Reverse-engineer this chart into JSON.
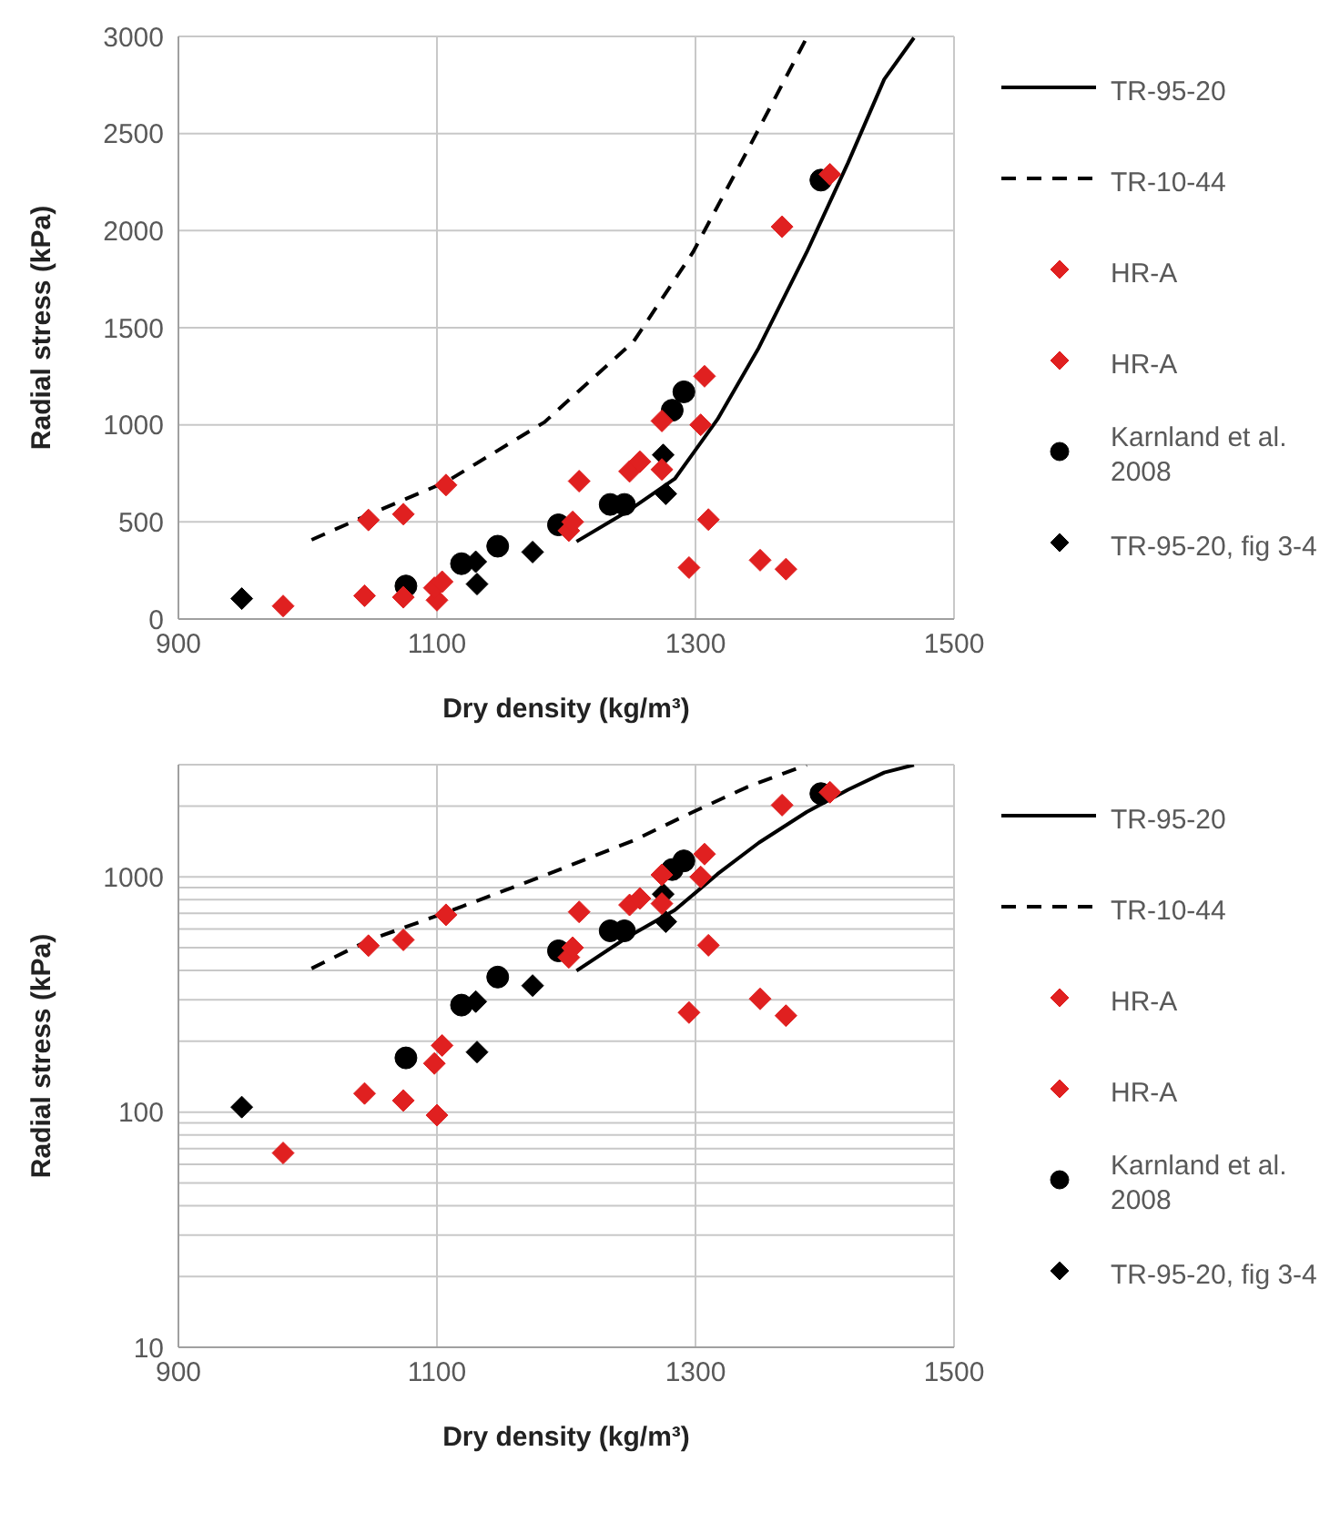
{
  "chart_data": [
    {
      "type": "scatter",
      "xlabel": "Dry density (kg/m³)",
      "ylabel": "Radial stress (kPa)",
      "xlim": [
        900,
        1500
      ],
      "xticks": [
        900,
        1100,
        1300,
        1500
      ],
      "ylim": [
        0,
        3000
      ],
      "yticks": [
        0,
        500,
        1000,
        1500,
        2000,
        2500,
        3000
      ],
      "grid": true,
      "legend": "right",
      "series": [
        {
          "name": "TR-95-20",
          "type": "line",
          "line_style": "solid",
          "marker": "none",
          "color": "#000000",
          "x": [
            1208,
            1247,
            1284,
            1317,
            1349,
            1386,
            1418,
            1446,
            1469
          ],
          "values": [
            399,
            553,
            722,
            1028,
            1397,
            1888,
            2349,
            2779,
            2993
          ]
        },
        {
          "name": "TR-10-44",
          "type": "line",
          "line_style": "dashed",
          "marker": "none",
          "color": "#000000",
          "x": [
            1003,
            1047,
            1107,
            1183,
            1252,
            1298,
            1340,
            1386
          ],
          "values": [
            408,
            537,
            706,
            1013,
            1428,
            1888,
            2410,
            2993
          ]
        },
        {
          "name": "HR-A",
          "marker": "diamond",
          "color": "#e02020",
          "x": [
            1047,
            1074,
            1107,
            1210,
            1205,
            1249,
            1257,
            1274,
            1274,
            1307,
            1367,
            1404
          ],
          "values": [
            510,
            540,
            690,
            710,
            500,
            760,
            810,
            1020,
            770,
            1250,
            2020,
            2290
          ]
        },
        {
          "name": "HR-A",
          "marker": "diamond",
          "color": "#e02020",
          "x": [
            981,
            1044,
            1074,
            1100,
            1098,
            1104,
            1202,
            1304,
            1310,
            1295,
            1350,
            1370
          ],
          "values": [
            67,
            120,
            112,
            97,
            161,
            192,
            455,
            1000,
            512,
            265,
            303,
            257
          ]
        },
        {
          "name": "Karnland et al. 2008",
          "marker": "circle",
          "color": "#000000",
          "x": [
            1076,
            1119,
            1147,
            1194,
            1234,
            1245,
            1282,
            1291,
            1397
          ],
          "values": [
            170,
            285,
            375,
            485,
            590,
            590,
            1075,
            1170,
            2260
          ]
        },
        {
          "name": "TR-95-20, fig 3-4",
          "marker": "diamond",
          "color": "#000000",
          "x": [
            949,
            1130,
            1131,
            1174,
            1275,
            1277
          ],
          "values": [
            105,
            295,
            180,
            345,
            845,
            645
          ]
        }
      ]
    },
    {
      "type": "scatter",
      "xlabel": "Dry density (kg/m³)",
      "ylabel": "Radial stress (kPa)",
      "xlim": [
        900,
        1500
      ],
      "xticks": [
        900,
        1100,
        1300,
        1500
      ],
      "ylim": [
        10,
        3000
      ],
      "log": true,
      "yticks": [
        10,
        {
          "value": 20,
          "label": null
        },
        {
          "value": 30,
          "label": null
        },
        {
          "value": 40,
          "label": null
        },
        {
          "value": 50,
          "label": null
        },
        {
          "value": 60,
          "label": null
        },
        {
          "value": 70,
          "label": null
        },
        {
          "value": 80,
          "label": null
        },
        {
          "value": 90,
          "label": null
        },
        100,
        {
          "value": 200,
          "label": null
        },
        {
          "value": 300,
          "label": null
        },
        {
          "value": 400,
          "label": null
        },
        {
          "value": 500,
          "label": null
        },
        {
          "value": 600,
          "label": null
        },
        {
          "value": 700,
          "label": null
        },
        {
          "value": 800,
          "label": null
        },
        {
          "value": 900,
          "label": null
        },
        1000,
        {
          "value": 2000,
          "label": null
        },
        {
          "value": 3000,
          "label": null
        }
      ],
      "grid": true,
      "legend": "right",
      "series": [
        {
          "name": "TR-95-20",
          "type": "line",
          "line_style": "solid",
          "marker": "none",
          "color": "#000000",
          "x": [
            1208,
            1247,
            1284,
            1317,
            1349,
            1386,
            1418,
            1446,
            1469
          ],
          "values": [
            399,
            553,
            722,
            1028,
            1397,
            1888,
            2349,
            2779,
            2993
          ]
        },
        {
          "name": "TR-10-44",
          "type": "line",
          "line_style": "dashed",
          "marker": "none",
          "color": "#000000",
          "x": [
            1003,
            1047,
            1107,
            1183,
            1252,
            1298,
            1340,
            1386
          ],
          "values": [
            408,
            537,
            706,
            1013,
            1428,
            1888,
            2410,
            2993
          ]
        },
        {
          "name": "HR-A",
          "marker": "diamond",
          "color": "#e02020",
          "x": [
            1047,
            1074,
            1107,
            1210,
            1205,
            1249,
            1257,
            1274,
            1274,
            1307,
            1367,
            1404
          ],
          "values": [
            510,
            540,
            690,
            710,
            500,
            760,
            810,
            1020,
            770,
            1250,
            2020,
            2290
          ]
        },
        {
          "name": "HR-A",
          "marker": "diamond",
          "color": "#e02020",
          "x": [
            981,
            1044,
            1074,
            1100,
            1098,
            1104,
            1202,
            1304,
            1310,
            1295,
            1350,
            1370
          ],
          "values": [
            67,
            120,
            112,
            97,
            161,
            192,
            455,
            1000,
            512,
            265,
            303,
            257
          ]
        },
        {
          "name": "Karnland et al. 2008",
          "marker": "circle",
          "color": "#000000",
          "x": [
            1076,
            1119,
            1147,
            1194,
            1234,
            1245,
            1282,
            1291,
            1397
          ],
          "values": [
            170,
            285,
            375,
            485,
            590,
            590,
            1075,
            1170,
            2260
          ]
        },
        {
          "name": "TR-95-20, fig 3-4",
          "marker": "diamond",
          "color": "#000000",
          "x": [
            949,
            1130,
            1131,
            1174,
            1275,
            1277
          ],
          "values": [
            105,
            295,
            180,
            345,
            845,
            645
          ]
        }
      ]
    }
  ]
}
